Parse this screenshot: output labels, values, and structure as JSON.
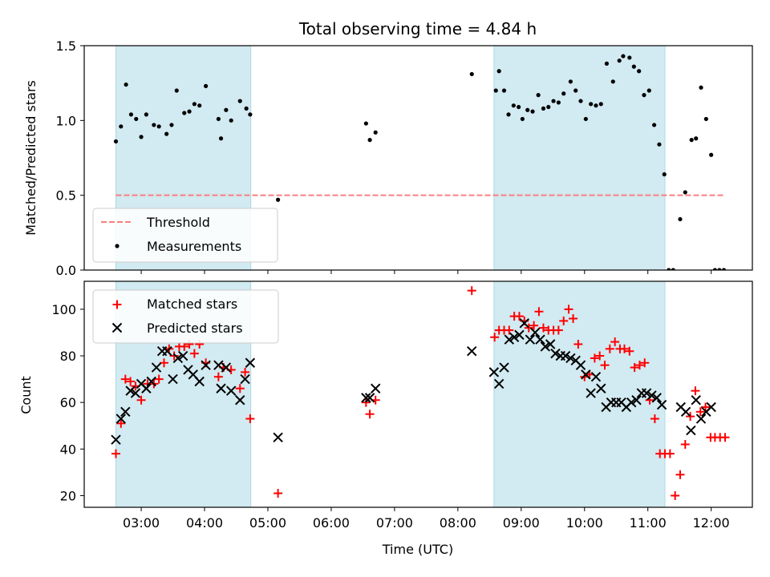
{
  "chart_data": [
    {
      "type": "scatter",
      "title": "Total observing time = 4.84 h",
      "xlabel": "",
      "ylabel": "Matched/Predicted stars",
      "xlim": [
        2.1,
        12.65
      ],
      "ylim": [
        0,
        1.5
      ],
      "yticks": [
        0.0,
        0.5,
        1.0,
        1.5
      ],
      "ytick_labels": [
        "0.0",
        "0.5",
        "1.0",
        "1.5"
      ],
      "shaded_intervals": [
        [
          2.6,
          4.73
        ],
        [
          8.57,
          11.27
        ]
      ],
      "threshold": {
        "name": "Threshold",
        "y": 0.5,
        "x_range": [
          2.6,
          12.2
        ],
        "color": "#f77f7f"
      },
      "legend": {
        "position": "lower-left",
        "entries": [
          "Threshold",
          "Measurements"
        ]
      },
      "series": [
        {
          "name": "Measurements",
          "color": "#000000",
          "x": [
            2.6,
            2.68,
            2.76,
            2.84,
            2.92,
            3.0,
            3.08,
            3.2,
            3.28,
            3.4,
            3.48,
            3.56,
            3.68,
            3.76,
            3.84,
            3.92,
            4.02,
            4.22,
            4.26,
            4.34,
            4.42,
            4.56,
            4.66,
            4.72,
            5.16,
            6.55,
            6.61,
            6.7,
            8.22,
            8.6,
            8.65,
            8.73,
            8.8,
            8.88,
            8.96,
            9.02,
            9.1,
            9.18,
            9.27,
            9.35,
            9.43,
            9.51,
            9.59,
            9.67,
            9.78,
            9.86,
            9.94,
            10.02,
            10.1,
            10.18,
            10.26,
            10.35,
            10.45,
            10.55,
            10.61,
            10.71,
            10.78,
            10.86,
            10.94,
            11.02,
            11.1,
            11.18,
            11.26,
            11.33,
            11.4,
            11.51,
            11.59,
            11.69,
            11.76,
            11.84,
            11.92,
            12.0,
            12.06,
            12.13,
            12.2
          ],
          "y": [
            0.86,
            0.96,
            1.24,
            1.04,
            1.01,
            0.89,
            1.04,
            0.97,
            0.96,
            0.91,
            0.97,
            1.2,
            1.05,
            1.06,
            1.11,
            1.1,
            1.23,
            1.01,
            0.88,
            1.07,
            1.0,
            1.13,
            1.08,
            1.04,
            0.47,
            0.98,
            0.87,
            0.92,
            1.31,
            1.2,
            1.33,
            1.2,
            1.04,
            1.1,
            1.09,
            1.01,
            1.07,
            1.06,
            1.17,
            1.08,
            1.09,
            1.13,
            1.12,
            1.18,
            1.26,
            1.2,
            1.13,
            1.01,
            1.11,
            1.1,
            1.11,
            1.38,
            1.26,
            1.4,
            1.43,
            1.42,
            1.36,
            1.33,
            1.17,
            1.2,
            0.97,
            0.84,
            0.64,
            0.0,
            0.0,
            0.34,
            0.52,
            0.87,
            0.88,
            1.22,
            1.01,
            0.77,
            0.0,
            0.0,
            0.0
          ]
        }
      ]
    },
    {
      "type": "scatter",
      "title": "",
      "xlabel": "Time (UTC)",
      "ylabel": "Count",
      "xlim": [
        2.1,
        12.65
      ],
      "ylim": [
        15,
        112
      ],
      "yticks": [
        20,
        40,
        60,
        80,
        100
      ],
      "ytick_labels": [
        "20",
        "40",
        "60",
        "80",
        "100"
      ],
      "xticks": [
        3,
        4,
        5,
        6,
        7,
        8,
        9,
        10,
        11,
        12
      ],
      "xtick_labels": [
        "03:00",
        "04:00",
        "05:00",
        "06:00",
        "07:00",
        "08:00",
        "09:00",
        "10:00",
        "11:00",
        "12:00"
      ],
      "shaded_intervals": [
        [
          2.6,
          4.73
        ],
        [
          8.57,
          11.27
        ]
      ],
      "legend": {
        "position": "top-left",
        "entries": [
          "Matched stars",
          "Predicted stars"
        ]
      },
      "series": [
        {
          "name": "Matched stars",
          "marker": "plus",
          "color": "#ff0000",
          "x": [
            2.6,
            2.68,
            2.75,
            2.83,
            2.91,
            3.0,
            3.1,
            3.2,
            3.28,
            3.36,
            3.44,
            3.52,
            3.6,
            3.68,
            3.76,
            3.84,
            3.92,
            4.02,
            4.22,
            4.3,
            4.42,
            4.56,
            4.64,
            4.72,
            5.16,
            6.55,
            6.61,
            6.7,
            8.22,
            8.58,
            8.65,
            8.73,
            8.81,
            8.89,
            8.97,
            9.05,
            9.12,
            9.2,
            9.28,
            9.35,
            9.43,
            9.51,
            9.59,
            9.67,
            9.75,
            9.82,
            9.9,
            10.0,
            10.08,
            10.16,
            10.24,
            10.32,
            10.4,
            10.48,
            10.56,
            10.63,
            10.71,
            10.79,
            10.87,
            10.95,
            11.03,
            11.11,
            11.19,
            11.27,
            11.35,
            11.43,
            11.51,
            11.59,
            11.67,
            11.75,
            11.83,
            11.91,
            11.99,
            12.06,
            12.14,
            12.22
          ],
          "y": [
            38,
            51,
            70,
            69,
            67,
            61,
            68,
            68,
            70,
            77,
            83,
            80,
            84,
            84,
            85,
            81,
            85,
            77,
            71,
            75,
            74,
            66,
            73,
            53,
            21,
            60,
            55,
            61,
            108,
            88,
            91,
            91,
            91,
            97,
            97,
            95,
            92,
            93,
            99,
            92,
            91,
            91,
            91,
            95,
            100,
            96,
            85,
            71,
            72,
            79,
            80,
            76,
            83,
            86,
            83,
            83,
            82,
            75,
            76,
            77,
            61,
            53,
            38,
            38,
            38,
            20,
            29,
            42,
            54,
            65,
            56,
            58,
            45,
            45,
            45,
            45
          ]
        },
        {
          "name": "Predicted stars",
          "marker": "x",
          "color": "#000000",
          "x": [
            2.6,
            2.68,
            2.75,
            2.83,
            2.91,
            3.0,
            3.08,
            3.16,
            3.24,
            3.33,
            3.41,
            3.5,
            3.58,
            3.66,
            3.74,
            3.82,
            3.92,
            4.02,
            4.22,
            4.26,
            4.34,
            4.42,
            4.56,
            4.64,
            4.72,
            5.16,
            6.55,
            6.61,
            6.7,
            8.22,
            8.57,
            8.65,
            8.73,
            8.81,
            8.89,
            8.97,
            9.05,
            9.14,
            9.22,
            9.3,
            9.38,
            9.46,
            9.54,
            9.62,
            9.7,
            9.78,
            9.86,
            9.94,
            10.02,
            10.1,
            10.18,
            10.26,
            10.34,
            10.42,
            10.5,
            10.58,
            10.66,
            10.74,
            10.82,
            10.9,
            10.98,
            11.06,
            11.14,
            11.22,
            11.52,
            11.6,
            11.68,
            11.76,
            11.84,
            11.92,
            12.0
          ],
          "y": [
            44,
            53,
            56,
            65,
            64,
            68,
            66,
            69,
            75,
            82,
            82,
            70,
            79,
            80,
            74,
            72,
            69,
            76,
            76,
            66,
            75,
            65,
            61,
            70,
            77,
            45,
            62,
            62,
            66,
            82,
            73,
            68,
            75,
            87,
            88,
            89,
            94,
            87,
            90,
            87,
            84,
            85,
            81,
            80,
            80,
            79,
            78,
            76,
            72,
            64,
            71,
            66,
            58,
            60,
            60,
            60,
            58,
            60,
            61,
            64,
            64,
            63,
            62,
            59,
            58,
            56,
            48,
            61,
            53,
            56,
            58
          ]
        }
      ]
    }
  ]
}
